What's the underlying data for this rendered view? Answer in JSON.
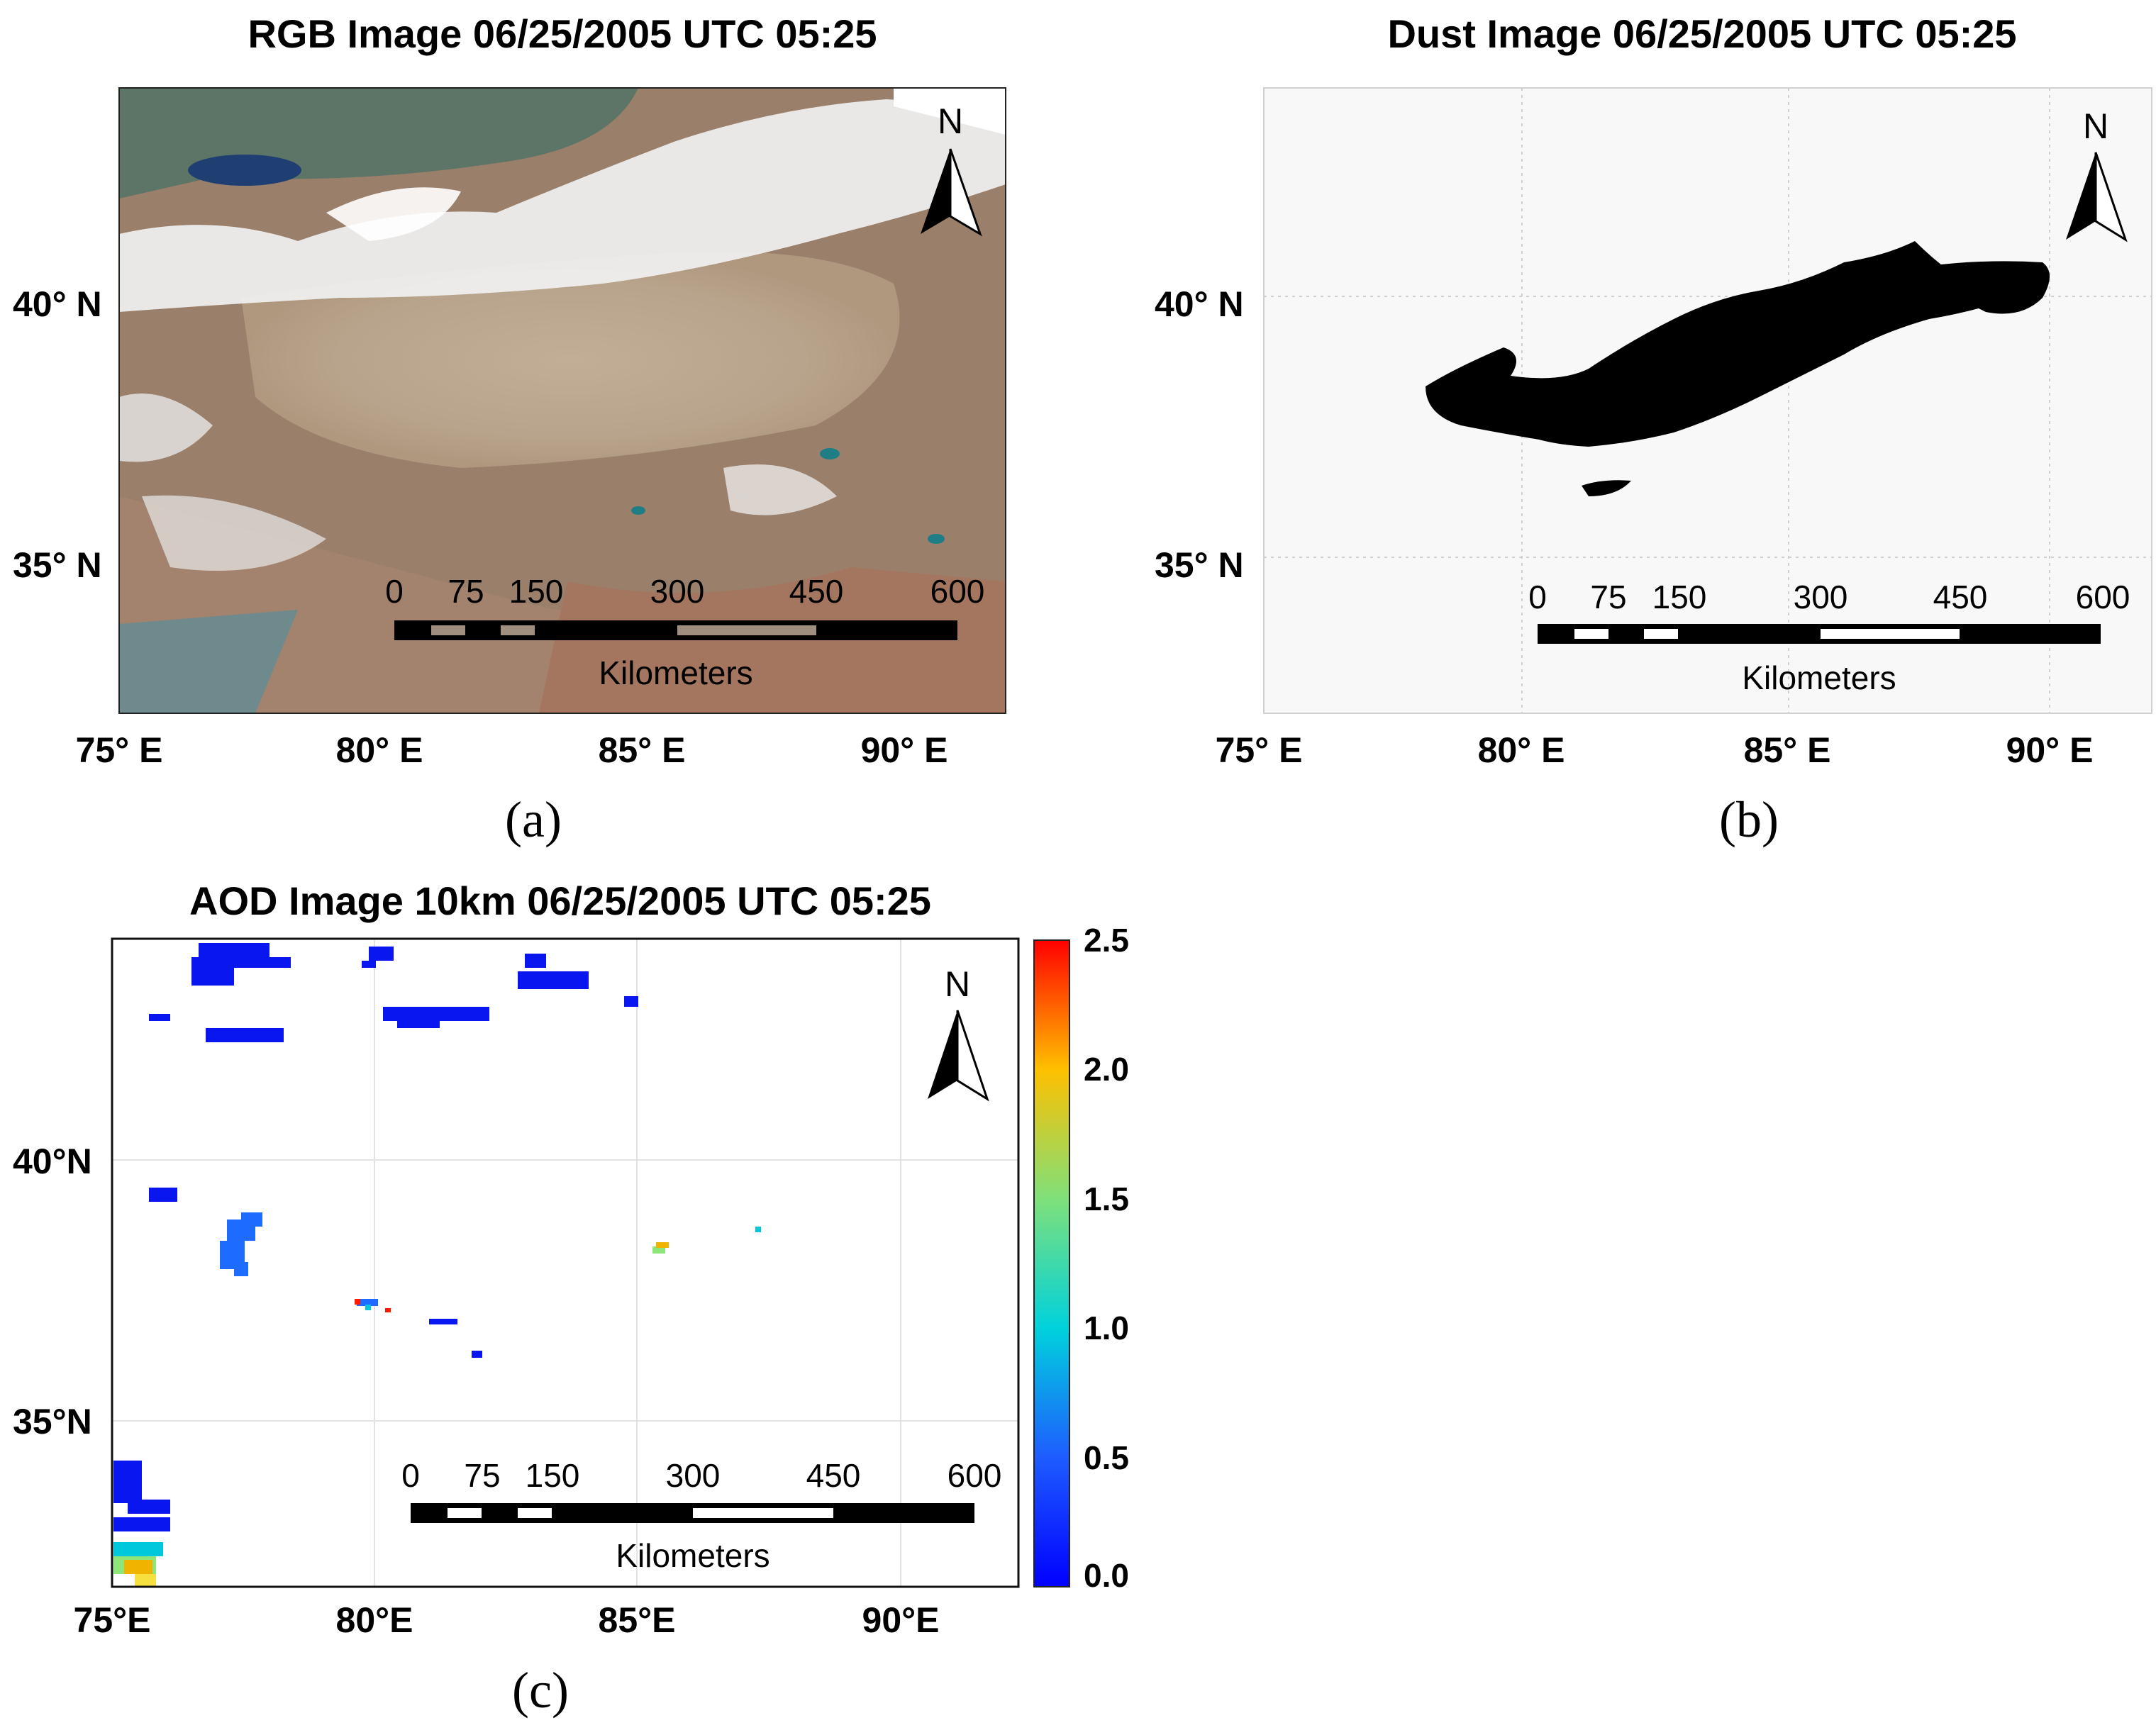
{
  "panels": {
    "a": {
      "title": "RGB Image 06/25/2005 UTC 05:25",
      "lat_ticks": [
        "40° N",
        "35° N"
      ],
      "lon_ticks": [
        "75° E",
        "80° E",
        "85° E",
        "90° E"
      ],
      "north": "N",
      "scale_numbers": [
        "0",
        "75",
        "150",
        "300",
        "450",
        "600"
      ],
      "scale_unit": "Kilometers",
      "caption": "(a)"
    },
    "b": {
      "title": "Dust Image 06/25/2005 UTC 05:25",
      "lat_ticks": [
        "40° N",
        "35° N"
      ],
      "lon_ticks": [
        "75° E",
        "80° E",
        "85° E",
        "90° E"
      ],
      "north": "N",
      "scale_numbers": [
        "0",
        "75",
        "150",
        "300",
        "450",
        "600"
      ],
      "scale_unit": "Kilometers",
      "caption": "(b)"
    },
    "c": {
      "title": "AOD Image 10km 06/25/2005 UTC 05:25",
      "lat_ticks": [
        "40°N",
        "35°N"
      ],
      "lon_ticks": [
        "75°E",
        "80°E",
        "85°E",
        "90°E"
      ],
      "north": "N",
      "scale_numbers": [
        "0",
        "75",
        "150",
        "300",
        "450",
        "600"
      ],
      "scale_unit": "Kilometers",
      "caption": "(c)",
      "colorbar_ticks": [
        "2.5",
        "2.0",
        "1.5",
        "1.0",
        "0.5",
        "0.0"
      ],
      "colorbar_range": [
        0.0,
        2.5
      ]
    }
  },
  "colors": {
    "dust_mask": "#000000",
    "sand": "#b7a48c",
    "cloud": "#f4f4f4",
    "terrain": "#9b7f6a",
    "aod_low": "#0a16f0",
    "aod_high": "#ff1a00"
  }
}
